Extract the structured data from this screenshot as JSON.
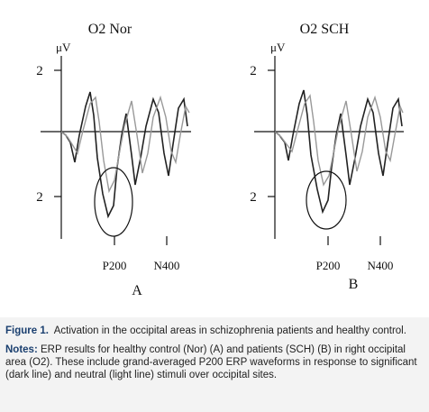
{
  "figure": {
    "panels": [
      {
        "title": "O2 Nor",
        "unit": "μV",
        "ytick_top": "2",
        "ytick_bottom": "2",
        "xlabels": [
          "P200",
          "N400"
        ],
        "letter": "A"
      },
      {
        "title": "O2 SCH",
        "unit": "μV",
        "ytick_top": "2",
        "ytick_bottom": "2",
        "xlabels": [
          "P200",
          "N400"
        ],
        "letter": "B"
      }
    ]
  },
  "caption": {
    "label": "Figure 1.",
    "text": "Activation in the occipital areas in schizophrenia patients and healthy control."
  },
  "notes": {
    "label": "Notes:",
    "text": "ERP results for healthy control (Nor) (A) and patients (SCH) (B) in right occipital area (O2). These include grand-averaged P200 ERP waveforms in response to significant (dark line) and neutral (light line) stimuli over occipital sites."
  }
}
